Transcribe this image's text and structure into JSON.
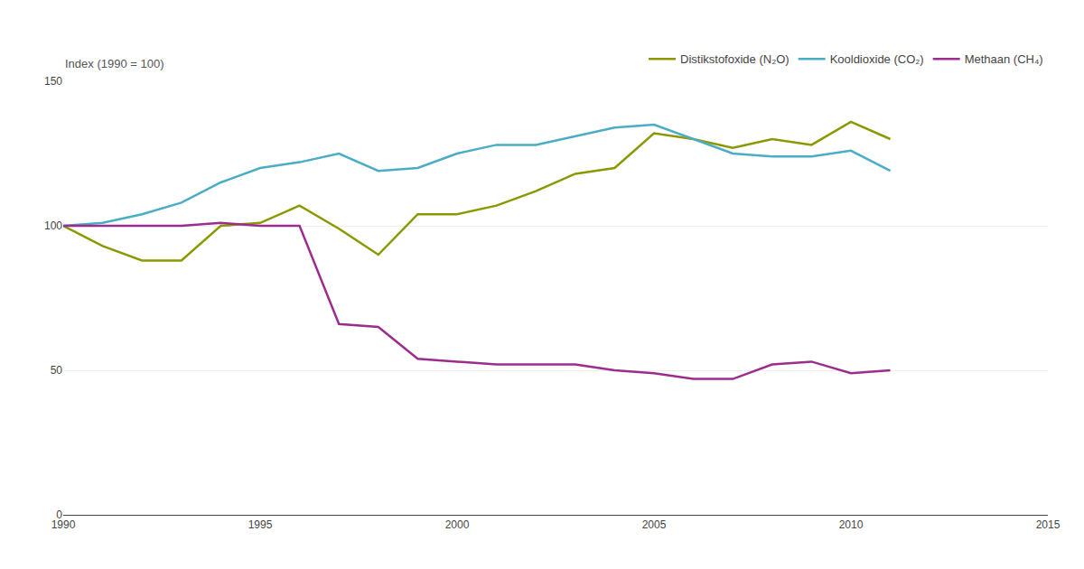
{
  "chart_data": {
    "type": "line",
    "ylabel": "Index (1990 = 100)",
    "x": [
      1990,
      1991,
      1992,
      1993,
      1994,
      1995,
      1996,
      1997,
      1998,
      1999,
      2000,
      2001,
      2002,
      2003,
      2004,
      2005,
      2006,
      2007,
      2008,
      2009,
      2010,
      2011
    ],
    "series": [
      {
        "name": "Distikstofoxide (N₂O)",
        "color": "#8B9900",
        "values": [
          100,
          93,
          88,
          88,
          100,
          101,
          107,
          99,
          90,
          104,
          104,
          107,
          112,
          118,
          120,
          132,
          130,
          127,
          130,
          128,
          136,
          130
        ]
      },
      {
        "name": "Kooldioxide (CO₂)",
        "color": "#4BACC6",
        "values": [
          100,
          101,
          104,
          108,
          115,
          120,
          122,
          125,
          119,
          120,
          125,
          128,
          128,
          131,
          134,
          135,
          130,
          125,
          124,
          124,
          126,
          119
        ]
      },
      {
        "name": "Methaan (CH₄)",
        "color": "#9B2D8E",
        "values": [
          100,
          100,
          100,
          100,
          101,
          100,
          100,
          66,
          65,
          54,
          53,
          52,
          52,
          52,
          50,
          49,
          47,
          47,
          52,
          53,
          49,
          50
        ]
      }
    ],
    "xlim": [
      1990,
      2015
    ],
    "xticks": [
      1990,
      1995,
      2000,
      2005,
      2010,
      2015
    ],
    "ylim": [
      0,
      150
    ],
    "yticks": [
      0,
      50,
      100,
      150
    ],
    "grid": true,
    "legend": "upper right"
  }
}
